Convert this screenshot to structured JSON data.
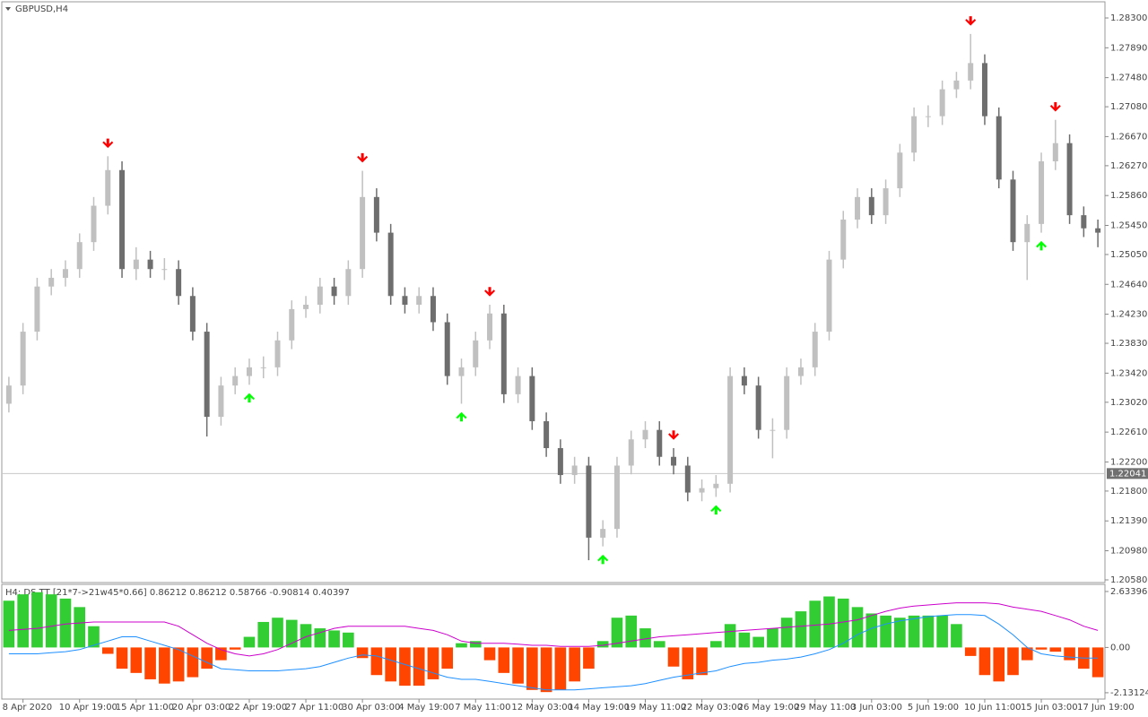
{
  "chart_data": [
    {
      "type": "candlestick",
      "title": "GBPUSD,H4",
      "categories": [
        null,
        "8 Apr 2020",
        null,
        null,
        null,
        "10 Apr 19:00",
        null,
        null,
        null,
        "15 Apr 11:00",
        null,
        null,
        null,
        "20 Apr 03:00",
        null,
        null,
        null,
        "22 Apr 19:00",
        null,
        null,
        null,
        "27 Apr 11:00",
        null,
        null,
        null,
        "30 Apr 03:00",
        null,
        null,
        null,
        "4 May 19:00",
        null,
        null,
        null,
        "7 May 11:00",
        null,
        null,
        null,
        "12 May 03:00",
        null,
        null,
        null,
        "14 May 19:00",
        null,
        null,
        null,
        "19 May 11:00",
        null,
        null,
        null,
        "22 May 03:00",
        null,
        null,
        null,
        "26 May 19:00",
        null,
        null,
        null,
        "29 May 11:00",
        null,
        null,
        null,
        "3 Jun 03:00",
        null,
        null,
        null,
        "5 Jun 19:00",
        null,
        null,
        null,
        "10 Jun 11:00",
        null,
        null,
        null,
        "15 Jun 03:00",
        null,
        null,
        null,
        "17 Jun 19:00"
      ],
      "open": [
        1.23,
        1.2325,
        1.2399,
        1.2461,
        1.2473,
        1.2485,
        1.2522,
        1.2572,
        1.2621,
        1.2485,
        1.2498,
        1.2485,
        1.2485,
        1.2448,
        1.2399,
        1.2282,
        1.2325,
        1.2338,
        1.235,
        1.235,
        1.2387,
        1.243,
        1.2436,
        1.2461,
        1.2448,
        1.2485,
        1.2584,
        1.2535,
        1.2448,
        1.2436,
        1.2448,
        1.2412,
        1.2338,
        1.235,
        1.2387,
        1.2424,
        1.2313,
        1.2338,
        1.2276,
        1.2239,
        1.2202,
        1.2215,
        1.2116,
        1.2128,
        1.2215,
        1.2251,
        1.2264,
        1.2227,
        1.2215,
        1.2178,
        1.2184,
        1.219,
        1.2338,
        1.2325,
        1.2264,
        1.2264,
        1.2338,
        1.235,
        1.2399,
        1.2498,
        1.2553,
        1.2584,
        1.2559,
        1.2596,
        1.2645,
        1.2695,
        1.2695,
        1.2732,
        1.2744,
        1.2768,
        1.2695,
        1.2608,
        1.2522,
        1.2547,
        1.2633,
        1.2658,
        1.2559,
        1.2541
      ],
      "high": [
        1.2337,
        1.2411,
        1.2473,
        1.2485,
        1.2497,
        1.2534,
        1.2584,
        1.264,
        1.2633,
        1.2515,
        1.251,
        1.25,
        1.2497,
        1.246,
        1.2411,
        1.2337,
        1.235,
        1.2362,
        1.2365,
        1.2399,
        1.2442,
        1.2448,
        1.2473,
        1.2473,
        1.2497,
        1.262,
        1.2596,
        1.2547,
        1.246,
        1.246,
        1.246,
        1.2424,
        1.2362,
        1.2399,
        1.2436,
        1.2436,
        1.235,
        1.235,
        1.2288,
        1.2251,
        1.2227,
        1.2227,
        1.214,
        1.2227,
        1.2263,
        1.2276,
        1.2276,
        1.2239,
        1.2227,
        1.2196,
        1.2202,
        1.235,
        1.235,
        1.2337,
        1.228,
        1.235,
        1.2362,
        1.2411,
        1.251,
        1.2565,
        1.2596,
        1.2596,
        1.2608,
        1.2657,
        1.2707,
        1.271,
        1.2744,
        1.2756,
        1.2808,
        1.278,
        1.2707,
        1.262,
        1.2559,
        1.2645,
        1.269,
        1.267,
        1.2571,
        1.2553
      ],
      "low": [
        1.2288,
        1.2313,
        1.2387,
        1.2449,
        1.2461,
        1.2473,
        1.251,
        1.256,
        1.2473,
        1.247,
        1.2473,
        1.247,
        1.2436,
        1.2387,
        1.2255,
        1.227,
        1.2313,
        1.2326,
        1.2335,
        1.2338,
        1.2375,
        1.2418,
        1.2424,
        1.2436,
        1.2436,
        1.2473,
        1.2523,
        1.2436,
        1.2424,
        1.2424,
        1.24,
        1.2326,
        1.23,
        1.2338,
        1.2375,
        1.2301,
        1.2301,
        1.2264,
        1.2227,
        1.219,
        1.219,
        1.2085,
        1.2104,
        1.2116,
        1.2203,
        1.2239,
        1.2215,
        1.2203,
        1.2166,
        1.2166,
        1.2172,
        1.2178,
        1.2313,
        1.2252,
        1.2225,
        1.2252,
        1.2326,
        1.2338,
        1.2387,
        1.2486,
        1.2541,
        1.2547,
        1.2547,
        1.2584,
        1.2633,
        1.268,
        1.2683,
        1.272,
        1.2732,
        1.2683,
        1.2596,
        1.251,
        1.247,
        1.2535,
        1.2621,
        1.2547,
        1.2529,
        1.2515
      ],
      "close": [
        1.2325,
        1.2399,
        1.2461,
        1.2473,
        1.2485,
        1.2522,
        1.2572,
        1.2621,
        1.2485,
        1.2498,
        1.2485,
        1.2485,
        1.2448,
        1.2399,
        1.2282,
        1.2325,
        1.2338,
        1.235,
        1.235,
        1.2387,
        1.243,
        1.2436,
        1.2461,
        1.2448,
        1.2485,
        1.2584,
        1.2535,
        1.2448,
        1.2436,
        1.2448,
        1.2412,
        1.2338,
        1.235,
        1.2387,
        1.2424,
        1.2313,
        1.2338,
        1.2276,
        1.2239,
        1.2202,
        1.2215,
        1.2116,
        1.2128,
        1.2215,
        1.2251,
        1.2264,
        1.2227,
        1.2215,
        1.2178,
        1.2184,
        1.219,
        1.2338,
        1.2325,
        1.2264,
        1.2264,
        1.2338,
        1.235,
        1.2399,
        1.2498,
        1.2553,
        1.2584,
        1.2559,
        1.2596,
        1.2645,
        1.2695,
        1.2695,
        1.2732,
        1.2744,
        1.2768,
        1.2695,
        1.2608,
        1.2522,
        1.2547,
        1.2633,
        1.2658,
        1.2559,
        1.2541,
        1.2535
      ],
      "sell_arrows": [
        null,
        null,
        null,
        null,
        null,
        null,
        null,
        1.2652,
        null,
        null,
        null,
        null,
        null,
        null,
        null,
        null,
        null,
        null,
        null,
        null,
        null,
        null,
        null,
        null,
        null,
        1.2632,
        null,
        null,
        null,
        null,
        null,
        null,
        null,
        null,
        1.2448,
        null,
        null,
        null,
        null,
        null,
        null,
        null,
        null,
        null,
        null,
        null,
        null,
        1.2251,
        null,
        null,
        null,
        null,
        null,
        null,
        null,
        null,
        null,
        null,
        null,
        null,
        null,
        null,
        null,
        null,
        null,
        null,
        null,
        null,
        1.282,
        null,
        null,
        null,
        null,
        null,
        1.2702,
        null,
        null,
        null
      ],
      "buy_arrows": [
        null,
        null,
        null,
        null,
        null,
        null,
        null,
        null,
        null,
        null,
        null,
        null,
        null,
        null,
        null,
        null,
        null,
        1.2314,
        null,
        null,
        null,
        null,
        null,
        null,
        null,
        null,
        null,
        null,
        null,
        null,
        null,
        null,
        1.2288,
        null,
        null,
        null,
        null,
        null,
        null,
        null,
        null,
        null,
        1.2092,
        null,
        null,
        null,
        null,
        null,
        null,
        null,
        1.216,
        null,
        null,
        null,
        null,
        null,
        null,
        null,
        null,
        null,
        null,
        null,
        null,
        null,
        null,
        null,
        null,
        null,
        null,
        null,
        null,
        null,
        null,
        1.2523,
        null,
        null,
        null,
        null
      ],
      "up_color": "#c0c0c0",
      "down_color": "#6e6e6e",
      "sell_color": "#ff0000",
      "buy_color": "#00ff00",
      "last_price": {
        "value": 1.22041,
        "label": "1.22041"
      },
      "ylim": [
        1.20543,
        1.28522
      ],
      "yticks": [
        {
          "value": 1.283,
          "label": "1.28300"
        },
        {
          "value": 1.2789,
          "label": "1.27890"
        },
        {
          "value": 1.2748,
          "label": "1.27480"
        },
        {
          "value": 1.2708,
          "label": "1.27080"
        },
        {
          "value": 1.2667,
          "label": "1.26670"
        },
        {
          "value": 1.2627,
          "label": "1.26270"
        },
        {
          "value": 1.2586,
          "label": "1.25860"
        },
        {
          "value": 1.2545,
          "label": "1.25450"
        },
        {
          "value": 1.2505,
          "label": "1.25050"
        },
        {
          "value": 1.2464,
          "label": "1.24640"
        },
        {
          "value": 1.2423,
          "label": "1.24230"
        },
        {
          "value": 1.2383,
          "label": "1.23830"
        },
        {
          "value": 1.2342,
          "label": "1.23420"
        },
        {
          "value": 1.2302,
          "label": "1.23020"
        },
        {
          "value": 1.2261,
          "label": "1.22610"
        },
        {
          "value": 1.222,
          "label": "1.22200"
        },
        {
          "value": 1.218,
          "label": "1.21800"
        },
        {
          "value": 1.2139,
          "label": "1.21390"
        },
        {
          "value": 1.2098,
          "label": "1.20980"
        },
        {
          "value": 1.2058,
          "label": "1.20580"
        }
      ]
    },
    {
      "type": "histogram",
      "title": "H4: DS TT [21*7->21w45*0.66] 0.86212 0.86212 0.58766 -0.90814 0.40397",
      "values": [
        2.2,
        2.5,
        2.6,
        2.5,
        2.3,
        1.9,
        1.0,
        -0.3,
        -1.0,
        -1.2,
        -1.5,
        -1.7,
        -1.6,
        -1.4,
        -1.0,
        -0.6,
        -0.1,
        0.5,
        1.2,
        1.4,
        1.3,
        1.1,
        0.9,
        0.8,
        0.7,
        -0.5,
        -1.3,
        -1.6,
        -1.8,
        -1.8,
        -1.5,
        -1.0,
        0.2,
        0.3,
        -0.6,
        -1.2,
        -1.7,
        -2.0,
        -2.1,
        -2.0,
        -1.6,
        -1.0,
        0.3,
        1.4,
        1.5,
        0.9,
        0.3,
        -0.9,
        -1.5,
        -1.3,
        0.3,
        1.1,
        0.7,
        0.5,
        0.9,
        1.4,
        1.7,
        2.2,
        2.4,
        2.3,
        1.9,
        1.6,
        1.5,
        1.4,
        1.5,
        1.5,
        1.5,
        1.1,
        -0.4,
        -1.3,
        -1.6,
        -1.3,
        -0.6,
        -0.1,
        -0.2,
        -0.6,
        -1.0,
        -1.4
      ],
      "positive_color": "#32cd32",
      "negative_color": "#ff4500",
      "lines": [
        {
          "color": "#cc00cc",
          "values": [
            0.8,
            0.85,
            0.9,
            1.0,
            1.1,
            1.15,
            1.2,
            1.2,
            1.2,
            1.2,
            1.2,
            1.2,
            1.0,
            0.6,
            0.2,
            -0.1,
            -0.3,
            -0.4,
            -0.3,
            -0.1,
            0.2,
            0.5,
            0.7,
            0.9,
            1.0,
            1.0,
            1.0,
            1.0,
            1.0,
            0.9,
            0.8,
            0.6,
            0.3,
            0.2,
            0.2,
            0.2,
            0.15,
            0.1,
            0.1,
            0.05,
            0.05,
            0.05,
            0.1,
            0.2,
            0.3,
            0.4,
            0.5,
            0.55,
            0.6,
            0.65,
            0.7,
            0.75,
            0.8,
            0.85,
            0.9,
            0.95,
            1.0,
            1.05,
            1.1,
            1.2,
            1.3,
            1.5,
            1.7,
            1.85,
            1.95,
            2.0,
            2.05,
            2.1,
            2.1,
            2.1,
            2.05,
            1.9,
            1.8,
            1.7,
            1.5,
            1.3,
            1.0,
            0.8
          ]
        },
        {
          "color": "#1e90ff",
          "values": [
            -0.3,
            -0.3,
            -0.3,
            -0.25,
            -0.2,
            -0.1,
            0.1,
            0.3,
            0.5,
            0.5,
            0.3,
            0.1,
            -0.1,
            -0.4,
            -0.7,
            -1.0,
            -1.05,
            -1.1,
            -1.1,
            -1.1,
            -1.05,
            -1.0,
            -0.9,
            -0.7,
            -0.5,
            -0.35,
            -0.4,
            -0.6,
            -0.8,
            -1.0,
            -1.2,
            -1.4,
            -1.5,
            -1.5,
            -1.6,
            -1.7,
            -1.8,
            -1.9,
            -2.0,
            -2.0,
            -2.0,
            -1.95,
            -1.9,
            -1.85,
            -1.8,
            -1.7,
            -1.55,
            -1.4,
            -1.3,
            -1.2,
            -1.1,
            -0.9,
            -0.75,
            -0.7,
            -0.6,
            -0.55,
            -0.45,
            -0.3,
            -0.1,
            0.2,
            0.6,
            0.9,
            1.1,
            1.25,
            1.35,
            1.45,
            1.5,
            1.55,
            1.55,
            1.5,
            1.1,
            0.6,
            0.0,
            -0.3,
            -0.4,
            -0.45,
            -0.5,
            -0.5
          ]
        }
      ],
      "ylim": [
        -2.43,
        2.97
      ],
      "yticks": [
        {
          "value": 2.63396,
          "label": "2.63396"
        },
        {
          "value": 0,
          "label": "0.00"
        },
        {
          "value": -2.13124,
          "label": "-2.13124"
        }
      ]
    }
  ]
}
